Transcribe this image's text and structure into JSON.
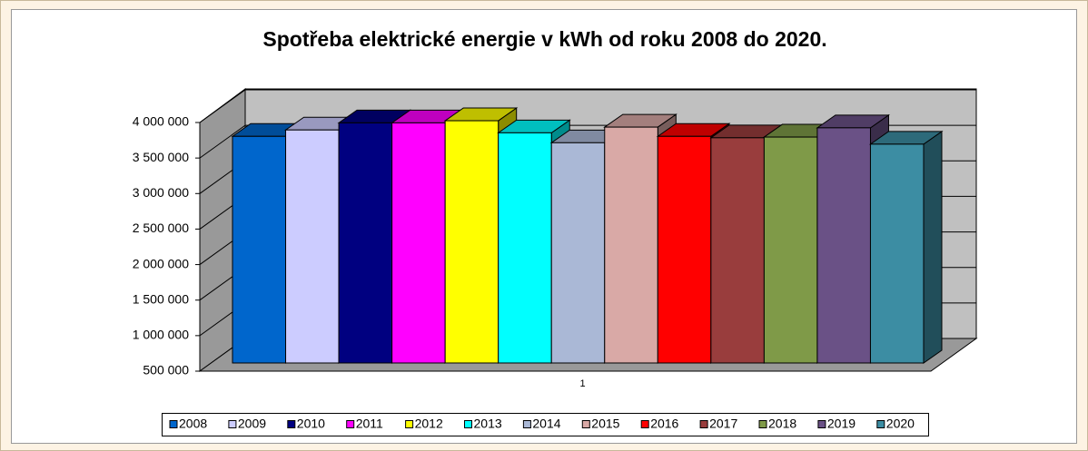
{
  "chart_data": {
    "type": "bar3d",
    "title": "Spotřeba elektrické energie v kWh od roku 2008 do  2020.",
    "categories": [
      "1"
    ],
    "series": [
      {
        "name": "2008",
        "color": "#0066cc",
        "values": [
          3690000
        ]
      },
      {
        "name": "2009",
        "color": "#ccccff",
        "values": [
          3780000
        ]
      },
      {
        "name": "2010",
        "color": "#000080",
        "values": [
          3880000
        ]
      },
      {
        "name": "2011",
        "color": "#ff00ff",
        "values": [
          3880000
        ]
      },
      {
        "name": "2012",
        "color": "#ffff00",
        "values": [
          3910000
        ]
      },
      {
        "name": "2013",
        "color": "#00ffff",
        "values": [
          3740000
        ]
      },
      {
        "name": "2014",
        "color": "#aab8d6",
        "values": [
          3600000
        ]
      },
      {
        "name": "2015",
        "color": "#d9a9a6",
        "values": [
          3820000
        ]
      },
      {
        "name": "2016",
        "color": "#ff0000",
        "values": [
          3690000
        ]
      },
      {
        "name": "2017",
        "color": "#993d3d",
        "values": [
          3670000
        ]
      },
      {
        "name": "2018",
        "color": "#7f9a48",
        "values": [
          3680000
        ]
      },
      {
        "name": "2019",
        "color": "#6a5186",
        "values": [
          3810000
        ]
      },
      {
        "name": "2020",
        "color": "#3c8da3",
        "values": [
          3580000
        ]
      }
    ],
    "ylim": [
      500000,
      4000000
    ],
    "yticks": [
      {
        "value": 500000,
        "label": "500 000"
      },
      {
        "value": 1000000,
        "label": "1 000 000"
      },
      {
        "value": 1500000,
        "label": "1 500 000"
      },
      {
        "value": 2000000,
        "label": "2 000 000"
      },
      {
        "value": 2500000,
        "label": "2 500 000"
      },
      {
        "value": 3000000,
        "label": "3 000 000"
      },
      {
        "value": 3500000,
        "label": "3 500 000"
      },
      {
        "value": 4000000,
        "label": "4 000 000"
      }
    ],
    "grid": true,
    "legend": "bottom"
  }
}
